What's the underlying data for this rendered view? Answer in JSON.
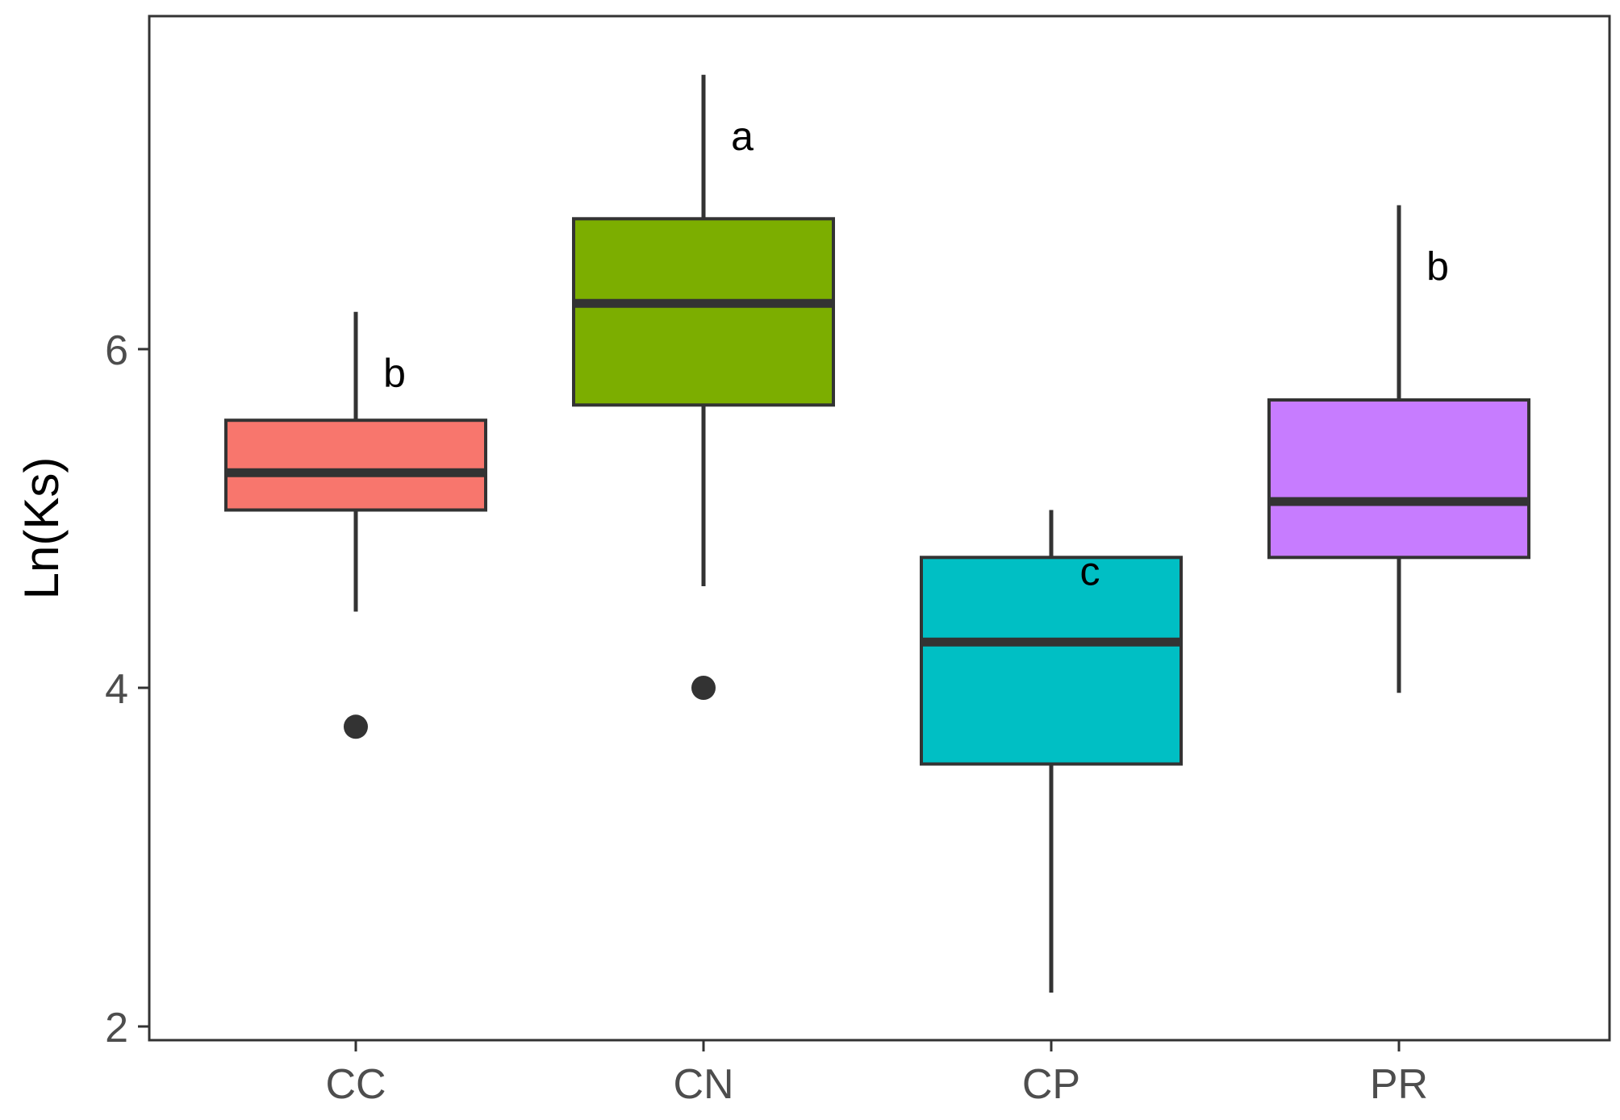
{
  "chart_data": {
    "type": "box",
    "ylabel": "Ln(Ks)",
    "xlabel": "",
    "ylim": [
      1.95,
      7.9
    ],
    "yticks": [
      2,
      4,
      6
    ],
    "categories": [
      "CC",
      "CN",
      "CP",
      "PR"
    ],
    "boxes": [
      {
        "category": "CC",
        "whisker_low": 4.45,
        "q1": 5.05,
        "median": 5.27,
        "q3": 5.58,
        "whisker_high": 6.22,
        "outliers": [
          3.77
        ],
        "letter": "b",
        "color": "#F8766D"
      },
      {
        "category": "CN",
        "whisker_low": 4.6,
        "q1": 5.67,
        "median": 6.27,
        "q3": 6.77,
        "whisker_high": 7.62,
        "outliers": [
          4.0
        ],
        "letter": "a",
        "color": "#7CAE00"
      },
      {
        "category": "CP",
        "whisker_low": 2.2,
        "q1": 3.55,
        "median": 4.27,
        "q3": 4.77,
        "whisker_high": 5.05,
        "outliers": [],
        "letter": "c",
        "color": "#00BFC4"
      },
      {
        "category": "PR",
        "whisker_low": 3.97,
        "q1": 4.77,
        "median": 5.1,
        "q3": 5.7,
        "whisker_high": 6.85,
        "outliers": [],
        "letter": "b",
        "color": "#C77CFF"
      }
    ],
    "grid": false,
    "legend": "none"
  }
}
